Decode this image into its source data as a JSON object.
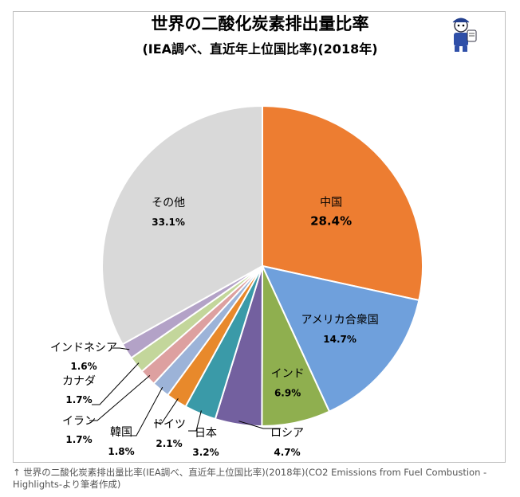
{
  "title": "世界の二酸化炭素排出量比率",
  "subtitle": "(IEA調べ、直近年上位国比率)(2018年)",
  "caption": "↑ 世界の二酸化炭素排出量比率(IEA調べ、直近年上位国比率)(2018年)(CO2 Emissions from Fuel Combustion - Highlights-より筆者作成)",
  "chart_data": {
    "type": "pie",
    "title": "世界の二酸化炭素排出量比率",
    "subtitle": "(IEA調べ、直近年上位国比率)(2018年)",
    "start": "12 o'clock, clockwise",
    "slices": [
      {
        "label": "中国",
        "value": 28.4,
        "value_label": "28.4%",
        "color": "#ED7D31"
      },
      {
        "label": "アメリカ合衆国",
        "value": 14.7,
        "value_label": "14.7%",
        "color": "#6FA0DC"
      },
      {
        "label": "インド",
        "value": 6.9,
        "value_label": "6.9%",
        "color": "#8FAF4F"
      },
      {
        "label": "ロシア",
        "value": 4.7,
        "value_label": "4.7%",
        "color": "#73609F"
      },
      {
        "label": "日本",
        "value": 3.2,
        "value_label": "3.2%",
        "color": "#3A9AA8"
      },
      {
        "label": "ドイツ",
        "value": 2.1,
        "value_label": "2.1%",
        "color": "#E8892B"
      },
      {
        "label": "韓国",
        "value": 1.8,
        "value_label": "1.8%",
        "color": "#9CB3D8"
      },
      {
        "label": "イラン",
        "value": 1.7,
        "value_label": "1.7%",
        "color": "#DDA0A0"
      },
      {
        "label": "カナダ",
        "value": 1.7,
        "value_label": "1.7%",
        "color": "#C3D69B"
      },
      {
        "label": "インドネシア",
        "value": 1.6,
        "value_label": "1.6%",
        "color": "#B3A2C7"
      },
      {
        "label": "その他",
        "value": 33.1,
        "value_label": "33.1%",
        "color": "#D9D9D9"
      }
    ]
  }
}
